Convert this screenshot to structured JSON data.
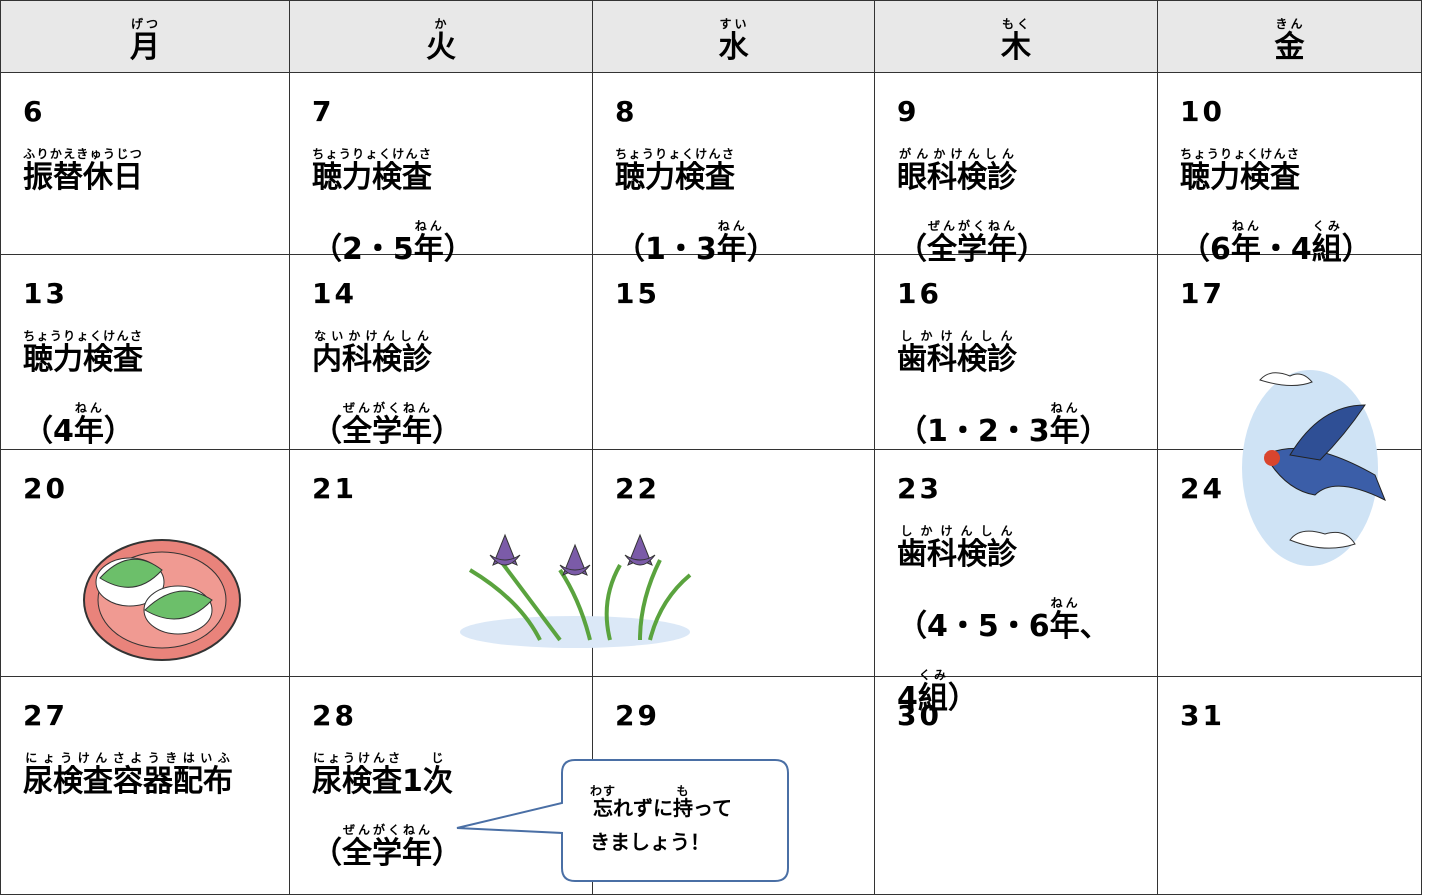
{
  "header": [
    {
      "text": "月",
      "ruby": "げつ"
    },
    {
      "text": "火",
      "ruby": "か"
    },
    {
      "text": "水",
      "ruby": "すい"
    },
    {
      "text": "木",
      "ruby": "もく"
    },
    {
      "text": "金",
      "ruby": "きん"
    }
  ],
  "weeks": [
    [
      {
        "day": "6",
        "lines": [
          [
            {
              "text": "振替休日",
              "ruby": "ふりかえきゅうじつ"
            }
          ]
        ]
      },
      {
        "day": "7",
        "lines": [
          [
            {
              "text": "聴力検査",
              "ruby": "ちょうりょくけんさ"
            }
          ],
          [
            {
              "text": "（2・5"
            },
            {
              "text": "年",
              "ruby": "ねん"
            },
            {
              "text": "）"
            }
          ]
        ]
      },
      {
        "day": "8",
        "lines": [
          [
            {
              "text": "聴力検査",
              "ruby": "ちょうりょくけんさ"
            }
          ],
          [
            {
              "text": "（1・3"
            },
            {
              "text": "年",
              "ruby": "ねん"
            },
            {
              "text": "）"
            }
          ]
        ]
      },
      {
        "day": "9",
        "lines": [
          [
            {
              "text": "眼科検診",
              "ruby": "がんかけんしん"
            }
          ],
          [
            {
              "text": "（"
            },
            {
              "text": "全学年",
              "ruby": "ぜんがくねん"
            },
            {
              "text": "）"
            }
          ]
        ]
      },
      {
        "day": "10",
        "lines": [
          [
            {
              "text": "聴力検査",
              "ruby": "ちょうりょくけんさ"
            }
          ],
          [
            {
              "text": "（6"
            },
            {
              "text": "年",
              "ruby": "ねん"
            },
            {
              "text": "・4"
            },
            {
              "text": "組",
              "ruby": "くみ"
            },
            {
              "text": "）"
            }
          ]
        ]
      }
    ],
    [
      {
        "day": "13",
        "lines": [
          [
            {
              "text": "聴力検査",
              "ruby": "ちょうりょくけんさ"
            }
          ],
          [
            {
              "text": "（4"
            },
            {
              "text": "年",
              "ruby": "ねん"
            },
            {
              "text": "）"
            }
          ]
        ]
      },
      {
        "day": "14",
        "lines": [
          [
            {
              "text": "内科検診",
              "ruby": "ないかけんしん"
            }
          ],
          [
            {
              "text": "（"
            },
            {
              "text": "全学年",
              "ruby": "ぜんがくねん"
            },
            {
              "text": "）"
            }
          ]
        ]
      },
      {
        "day": "15",
        "lines": []
      },
      {
        "day": "16",
        "lines": [
          [
            {
              "text": "歯科検診",
              "ruby": "しかけんしん"
            }
          ],
          [
            {
              "text": "（1・2・3"
            },
            {
              "text": "年",
              "ruby": "ねん"
            },
            {
              "text": "）"
            }
          ]
        ]
      },
      {
        "day": "17",
        "lines": []
      }
    ],
    [
      {
        "day": "20",
        "lines": []
      },
      {
        "day": "21",
        "lines": []
      },
      {
        "day": "22",
        "lines": []
      },
      {
        "day": "23",
        "lines": [
          [
            {
              "text": "歯科検診",
              "ruby": "しかけんしん"
            }
          ],
          [
            {
              "text": "（4・5・6"
            },
            {
              "text": "年",
              "ruby": "ねん"
            },
            {
              "text": "、"
            }
          ],
          [
            {
              "text": "4"
            },
            {
              "text": "組",
              "ruby": "くみ"
            },
            {
              "text": "）"
            }
          ]
        ]
      },
      {
        "day": "24",
        "lines": []
      }
    ],
    [
      {
        "day": "27",
        "lines": [
          [
            {
              "text": "尿検査容器配布",
              "ruby": "にょうけんさようきはいふ"
            }
          ]
        ]
      },
      {
        "day": "28",
        "lines": [
          [
            {
              "text": "尿検査",
              "ruby": "にょうけんさ"
            },
            {
              "text": "1"
            },
            {
              "text": "次",
              "ruby": "じ"
            }
          ],
          [
            {
              "text": "（"
            },
            {
              "text": "全学年",
              "ruby": "ぜんがくねん"
            },
            {
              "text": "）"
            }
          ]
        ]
      },
      {
        "day": "29",
        "lines": []
      },
      {
        "day": "30",
        "lines": []
      },
      {
        "day": "31",
        "lines": []
      }
    ]
  ],
  "callout": [
    [
      {
        "text": "忘",
        "ruby": "わす"
      },
      {
        "text": "れずに"
      },
      {
        "text": "持",
        "ruby": "も"
      },
      {
        "text": "って"
      }
    ],
    [
      {
        "text": "きましょう！"
      }
    ]
  ]
}
